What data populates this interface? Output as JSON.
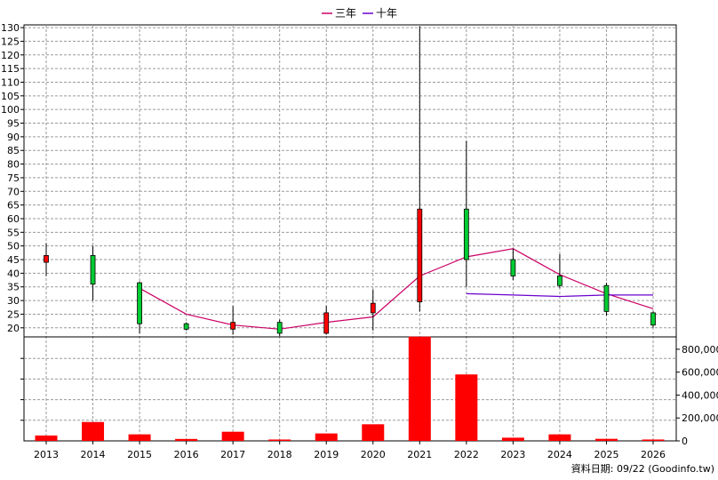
{
  "chart_data": {
    "type": "candlestick",
    "legend": [
      {
        "name": "三年",
        "color": "#cc0066"
      },
      {
        "name": "十年",
        "color": "#6a00cc"
      }
    ],
    "categories": [
      "2013",
      "2014",
      "2015",
      "2016",
      "2017",
      "2018",
      "2019",
      "2020",
      "2021",
      "2022",
      "2023",
      "2024",
      "2025",
      "2026"
    ],
    "price": {
      "ylim": [
        17,
        131
      ],
      "ticks": [
        20,
        25,
        30,
        35,
        40,
        45,
        50,
        55,
        60,
        65,
        70,
        75,
        80,
        85,
        90,
        95,
        100,
        105,
        110,
        115,
        120,
        125,
        130
      ],
      "candles": [
        {
          "open": 44,
          "close": 46.5,
          "high": 51,
          "low": 39
        },
        {
          "open": 46.5,
          "close": 36,
          "high": 50,
          "low": 30
        },
        {
          "open": 36.5,
          "close": 21.5,
          "high": 37,
          "low": 18
        },
        {
          "open": 21.5,
          "close": 19.5,
          "high": 22,
          "low": 19
        },
        {
          "open": 19.5,
          "close": 22,
          "high": 28,
          "low": 17.5
        },
        {
          "open": 22,
          "close": 18,
          "high": 23,
          "low": 17
        },
        {
          "open": 18,
          "close": 25.5,
          "high": 28,
          "low": 17.5
        },
        {
          "open": 25.5,
          "close": 29,
          "high": 34,
          "low": 19
        },
        {
          "open": 29.5,
          "close": 63.5,
          "high": 130.5,
          "low": 26
        },
        {
          "open": 63.5,
          "close": 45,
          "high": 88.5,
          "low": 35
        },
        {
          "open": 45,
          "close": 39,
          "high": 49,
          "low": 37.5
        },
        {
          "open": 39,
          "close": 35.5,
          "high": 47,
          "low": 34.5
        },
        {
          "open": 35.5,
          "close": 26,
          "high": 36.5,
          "low": 24.5
        },
        {
          "open": 25.5,
          "close": 21,
          "high": 26,
          "low": 20
        }
      ],
      "three_year_avg": [
        null,
        null,
        34.5,
        25,
        21,
        19.5,
        22,
        24,
        39,
        46,
        49,
        39.5,
        32.5,
        27
      ],
      "ten_year_avg": [
        null,
        null,
        null,
        null,
        null,
        null,
        null,
        null,
        null,
        32.5,
        32,
        31.5,
        32,
        32
      ]
    },
    "volume": {
      "ylim": [
        0,
        900000
      ],
      "tick_values": [
        0,
        200000,
        400000,
        600000,
        800000
      ],
      "tick_labels": [
        "0",
        "200,000",
        "400,000",
        "600,000",
        "800,000"
      ],
      "values": [
        47000,
        165000,
        57000,
        17000,
        80000,
        12000,
        65000,
        145000,
        910000,
        580000,
        28000,
        57000,
        18000,
        12000
      ]
    }
  },
  "footer": {
    "source": "資料日期: 09/22  (Goodinfo.tw)"
  }
}
